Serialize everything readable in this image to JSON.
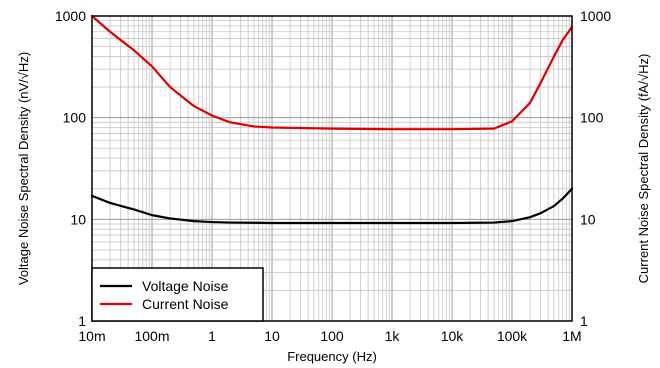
{
  "chart_data": {
    "type": "line",
    "xscale": "log",
    "yscale": "log",
    "xlim": [
      0.01,
      1000000
    ],
    "ylim": [
      1,
      1000
    ],
    "y2lim": [
      1,
      1000
    ],
    "grid": true,
    "legend_position": "bottom-left",
    "xlabel": "Frequency (Hz)",
    "ylabel": "Voltage Noise Spectral Density (nV/√Hz)",
    "y2label": "Current Noise Spectral Density (fA/√Hz)",
    "x_ticks": [
      {
        "value": 0.01,
        "label": "10m"
      },
      {
        "value": 0.1,
        "label": "100m"
      },
      {
        "value": 1,
        "label": "1"
      },
      {
        "value": 10,
        "label": "10"
      },
      {
        "value": 100,
        "label": "100"
      },
      {
        "value": 1000,
        "label": "1k"
      },
      {
        "value": 10000,
        "label": "10k"
      },
      {
        "value": 100000,
        "label": "100k"
      },
      {
        "value": 1000000,
        "label": "1M"
      }
    ],
    "y_ticks": [
      {
        "value": 1,
        "label": "1"
      },
      {
        "value": 10,
        "label": "10"
      },
      {
        "value": 100,
        "label": "100"
      },
      {
        "value": 1000,
        "label": "1000"
      }
    ],
    "y2_ticks": [
      {
        "value": 1,
        "label": "1"
      },
      {
        "value": 10,
        "label": "10"
      },
      {
        "value": 100,
        "label": "100"
      },
      {
        "value": 1000,
        "label": "1000"
      }
    ],
    "series": [
      {
        "name": "Voltage Noise",
        "color": "#000000",
        "axis": "left",
        "x": [
          0.01,
          0.02,
          0.05,
          0.1,
          0.2,
          0.5,
          1,
          2,
          5,
          10,
          100,
          1000,
          10000,
          50000,
          100000,
          200000,
          300000,
          500000,
          700000,
          1000000
        ],
        "y": [
          17,
          14.5,
          12.5,
          11,
          10.2,
          9.6,
          9.4,
          9.3,
          9.25,
          9.2,
          9.2,
          9.2,
          9.2,
          9.3,
          9.6,
          10.5,
          11.5,
          13.5,
          16,
          20
        ]
      },
      {
        "name": "Current Noise",
        "color": "#e00000",
        "axis": "right",
        "x": [
          0.01,
          0.02,
          0.05,
          0.1,
          0.2,
          0.5,
          1,
          2,
          5,
          10,
          100,
          1000,
          10000,
          50000,
          100000,
          200000,
          300000,
          500000,
          700000,
          1000000
        ],
        "y": [
          1000,
          700,
          460,
          320,
          200,
          130,
          105,
          90,
          82,
          80,
          78,
          77,
          77,
          78,
          92,
          140,
          220,
          400,
          580,
          780
        ]
      }
    ]
  }
}
